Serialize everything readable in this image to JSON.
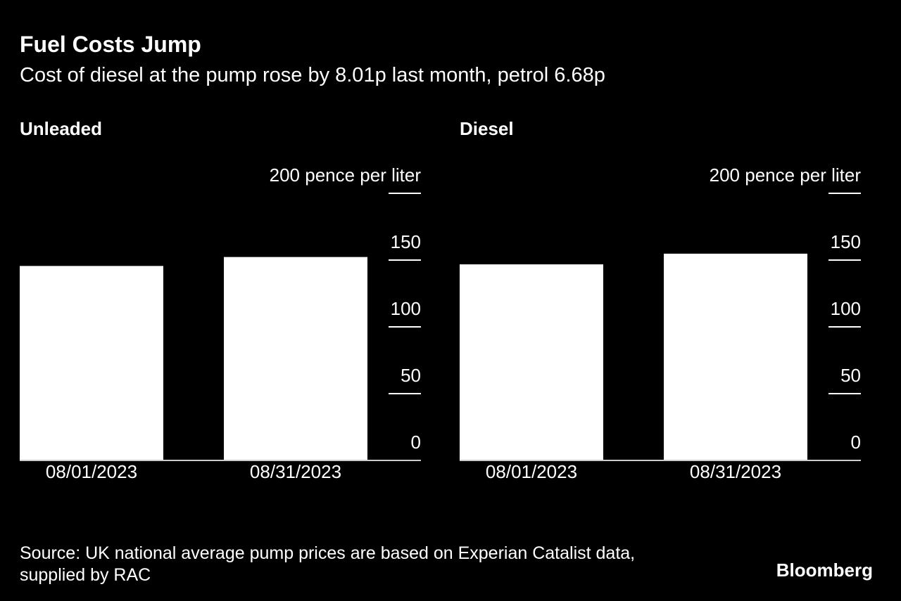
{
  "title": "Fuel Costs Jump",
  "subtitle": "Cost of diesel at the pump rose by 8.01p last month, petrol 6.68p",
  "chart_data": [
    {
      "type": "bar",
      "title": "Unleaded",
      "categories": [
        "08/01/2023",
        "08/31/2023"
      ],
      "values": [
        145.6,
        152.3
      ],
      "color": "#ffffff",
      "ylim": [
        0,
        200
      ],
      "yticks": [
        0,
        50,
        100,
        150,
        {
          "value": 200,
          "label": "200 pence per liter"
        }
      ]
    },
    {
      "type": "bar",
      "title": "Diesel",
      "categories": [
        "08/01/2023",
        "08/31/2023"
      ],
      "values": [
        146.8,
        154.8
      ],
      "color": "#ffffff",
      "ylim": [
        0,
        200
      ],
      "yticks": [
        0,
        50,
        100,
        150,
        {
          "value": 200,
          "label": "200 pence per liter"
        }
      ]
    }
  ],
  "source": "Source: UK national average pump prices are based on Experian Catalist data,",
  "source_line2": "supplied by RAC",
  "logo": "Bloomberg"
}
